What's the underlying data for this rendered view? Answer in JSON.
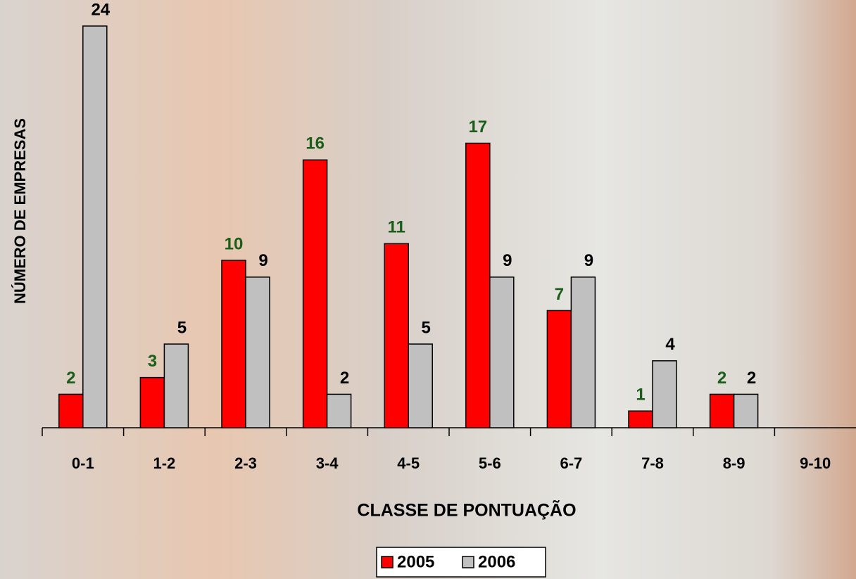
{
  "chart_data": {
    "type": "bar",
    "x_label": "CLASSE DE PONTUAÇÃO",
    "y_label": "NÚMERO DE EMPRESAS",
    "categories": [
      "0-1",
      "1-2",
      "2-3",
      "3-4",
      "4-5",
      "5-6",
      "6-7",
      "7-8",
      "8-9",
      "9-10"
    ],
    "series": [
      {
        "name": "2005",
        "color": "#ff0000",
        "label_color": "#1a5e1a",
        "values": [
          2,
          3,
          10,
          16,
          11,
          17,
          7,
          1,
          2,
          null
        ]
      },
      {
        "name": "2006",
        "color": "#c0c0c0",
        "label_color": "#000000",
        "values": [
          24,
          5,
          9,
          2,
          5,
          9,
          9,
          4,
          2,
          null
        ]
      }
    ],
    "ylim": [
      0,
      24
    ],
    "legend": "bottom"
  }
}
